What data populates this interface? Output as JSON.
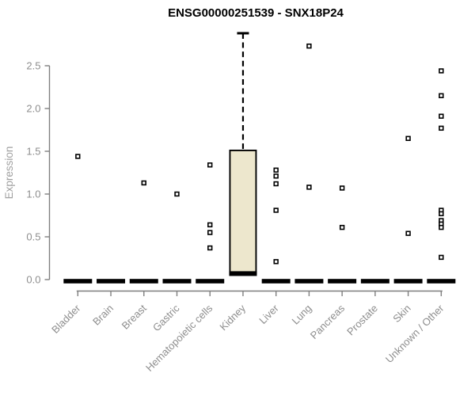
{
  "colors": {
    "background": "#ffffff",
    "title": "#000000",
    "axis_line": "#7f7f7f",
    "tick_label": "#8e8e8e",
    "axis_label": "#a0a0a0",
    "box_fill": "#ede7cd",
    "box_stroke": "#000000",
    "median_dash": "#000000",
    "point_stroke": "#000000",
    "point_fill": "#ffffff"
  },
  "chart_data": {
    "type": "boxplot",
    "title": "ENSG00000251539 - SNX18P24",
    "xlabel": "",
    "ylabel": "Expression",
    "ylim": [
      0,
      2.5
    ],
    "yticks": [
      0,
      0.5,
      1,
      1.5,
      2,
      2.5
    ],
    "grid": false,
    "legend_position": "none",
    "categories": [
      "Bladder",
      "Brain",
      "Breast",
      "Gastric",
      "Hematopoietic cells",
      "Kidney",
      "Liver",
      "Lung",
      "Pancreas",
      "Prostate",
      "Skin",
      "Unknown / Other"
    ],
    "series": [
      {
        "category": "Bladder",
        "median": 0,
        "outliers": [
          1.44
        ]
      },
      {
        "category": "Brain",
        "median": 0,
        "outliers": []
      },
      {
        "category": "Breast",
        "median": 0,
        "outliers": [
          1.13
        ]
      },
      {
        "category": "Gastric",
        "median": 0,
        "outliers": [
          1.0
        ]
      },
      {
        "category": "Hematopoietic cells",
        "median": 0,
        "outliers": [
          1.34,
          0.64,
          0.55,
          0.37
        ]
      },
      {
        "category": "Kidney",
        "median": 0.07,
        "q1": 0.07,
        "q3": 1.51,
        "whisker_high": 2.88,
        "outliers": []
      },
      {
        "category": "Liver",
        "median": 0,
        "outliers": [
          1.28,
          1.21,
          1.12,
          0.81,
          0.21
        ]
      },
      {
        "category": "Lung",
        "median": 0,
        "outliers": [
          2.73,
          1.08
        ]
      },
      {
        "category": "Pancreas",
        "median": 0,
        "outliers": [
          1.07,
          0.61
        ]
      },
      {
        "category": "Prostate",
        "median": 0,
        "outliers": []
      },
      {
        "category": "Skin",
        "median": 0,
        "outliers": [
          1.65,
          0.54
        ]
      },
      {
        "category": "Unknown / Other",
        "median": 0,
        "outliers": [
          2.44,
          2.15,
          1.91,
          1.77,
          0.81,
          0.77,
          0.69,
          0.65,
          0.61,
          0.26
        ]
      }
    ]
  }
}
